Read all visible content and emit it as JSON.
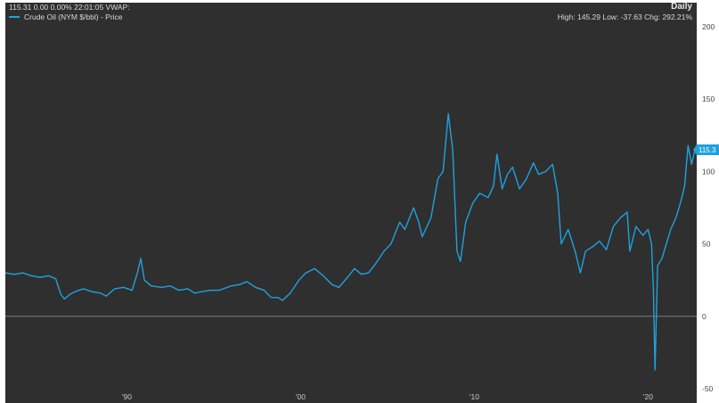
{
  "header": {
    "quote_line": "115.31 0.00 0.00% 22:01:05 VWAP:",
    "frequency": "Daily",
    "stats_line": "High: 145.29 Low: -37.63 Chg: 292.21%"
  },
  "legend": {
    "series_label": "Crude Oil (NYM $/bbl) - Price",
    "icon": "line-swatch"
  },
  "colors": {
    "background": "#2f2f2f",
    "series": "#1fa2dc",
    "zero_line": "#7a7a7a"
  },
  "last_value_label": "115.3",
  "chart_data": {
    "type": "line",
    "title": "",
    "xlabel": "",
    "ylabel": "",
    "ylim": [
      -50,
      200
    ],
    "xlim": [
      1983.0,
      2022.8
    ],
    "x_ticks": [
      {
        "value": 1990,
        "label": "'90"
      },
      {
        "value": 2000,
        "label": "'00"
      },
      {
        "value": 2010,
        "label": "'10"
      },
      {
        "value": 2020,
        "label": "'20"
      }
    ],
    "y_ticks": [
      -50,
      0,
      50,
      100,
      150,
      200
    ],
    "y_axis_position": "right",
    "grid": false,
    "reference_line": 0,
    "series": [
      {
        "name": "Crude Oil (NYM $/bbl) - Price",
        "x": [
          1983.0,
          1983.5,
          1984.0,
          1984.5,
          1985.0,
          1985.5,
          1985.9,
          1986.2,
          1986.4,
          1986.7,
          1987.0,
          1987.5,
          1988.0,
          1988.5,
          1988.8,
          1989.3,
          1989.8,
          1990.3,
          1990.6,
          1990.8,
          1991.0,
          1991.4,
          1992.0,
          1992.5,
          1993.0,
          1993.5,
          1993.9,
          1994.3,
          1994.8,
          1995.3,
          1996.0,
          1996.5,
          1996.9,
          1997.4,
          1997.9,
          1998.3,
          1998.7,
          1998.95,
          1999.4,
          1999.9,
          2000.3,
          2000.8,
          2001.3,
          2001.8,
          2002.2,
          2002.7,
          2003.1,
          2003.5,
          2003.9,
          2004.3,
          2004.8,
          2005.2,
          2005.7,
          2006.0,
          2006.5,
          2006.8,
          2007.0,
          2007.5,
          2007.9,
          2008.2,
          2008.5,
          2008.75,
          2009.0,
          2009.2,
          2009.5,
          2009.9,
          2010.3,
          2010.8,
          2011.1,
          2011.3,
          2011.6,
          2011.9,
          2012.2,
          2012.6,
          2013.0,
          2013.4,
          2013.7,
          2014.1,
          2014.5,
          2014.8,
          2015.0,
          2015.4,
          2015.8,
          2016.1,
          2016.4,
          2016.8,
          2017.2,
          2017.6,
          2018.0,
          2018.4,
          2018.8,
          2018.95,
          2019.3,
          2019.7,
          2020.0,
          2020.2,
          2020.3,
          2020.4,
          2020.55,
          2020.8,
          2021.0,
          2021.3,
          2021.6,
          2021.9,
          2022.1,
          2022.3,
          2022.5,
          2022.7
        ],
        "values": [
          30,
          29,
          30,
          28,
          27,
          28,
          26,
          15,
          12,
          15,
          17,
          19,
          17,
          16,
          14,
          19,
          20,
          18,
          30,
          40,
          25,
          21,
          20,
          21,
          18,
          19,
          16,
          17,
          18,
          18,
          21,
          22,
          24,
          20,
          18,
          13,
          13,
          11,
          16,
          25,
          30,
          33,
          28,
          22,
          20,
          27,
          33,
          29,
          30,
          36,
          45,
          50,
          65,
          60,
          75,
          65,
          55,
          68,
          95,
          100,
          140,
          115,
          45,
          38,
          65,
          78,
          85,
          82,
          90,
          112,
          88,
          98,
          103,
          88,
          95,
          106,
          98,
          100,
          105,
          85,
          50,
          60,
          45,
          30,
          45,
          48,
          52,
          46,
          62,
          68,
          72,
          45,
          62,
          56,
          60,
          50,
          20,
          -37,
          35,
          40,
          48,
          60,
          68,
          80,
          90,
          118,
          105,
          115
        ]
      }
    ]
  }
}
